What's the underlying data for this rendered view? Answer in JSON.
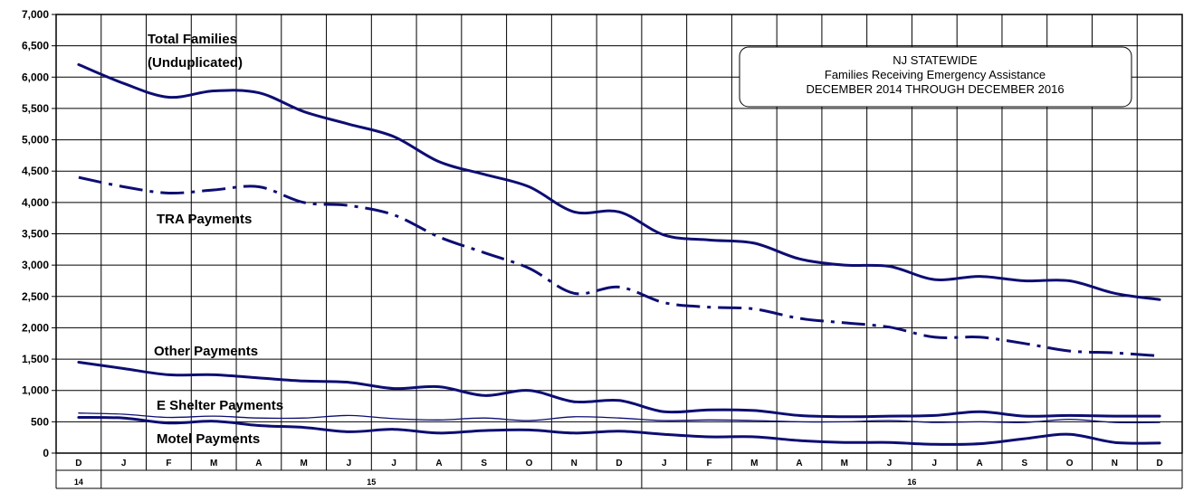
{
  "chart_data": {
    "type": "line",
    "title_lines": [
      "NJ STATEWIDE",
      "Families Receiving Emergency Assistance",
      "DECEMBER 2014 THROUGH DECEMBER 2016"
    ],
    "categories": [
      "D",
      "J",
      "F",
      "M",
      "A",
      "M",
      "J",
      "J",
      "A",
      "S",
      "O",
      "N",
      "D",
      "J",
      "F",
      "M",
      "A",
      "M",
      "J",
      "J",
      "A",
      "S",
      "O",
      "N",
      "D"
    ],
    "years": [
      {
        "label": "14",
        "start": 0,
        "end": 0
      },
      {
        "label": "15",
        "start": 1,
        "end": 12
      },
      {
        "label": "16",
        "start": 13,
        "end": 24
      }
    ],
    "ylim": [
      0,
      7000
    ],
    "ytick_step": 500,
    "ytick_labels": [
      "0",
      "500",
      "1,000",
      "1,500",
      "2,000",
      "2,500",
      "3,000",
      "3,500",
      "4,000",
      "4,500",
      "5,000",
      "5,500",
      "6,000",
      "6,500",
      "7,000"
    ],
    "grid": true,
    "line_color": "#0d0d73",
    "series": [
      {
        "name": "Total Families (Unduplicated)",
        "label_lines": [
          "Total Families",
          "(Unduplicated)"
        ],
        "style": "solid",
        "width": 3,
        "values": [
          6200,
          5900,
          5680,
          5780,
          5750,
          5450,
          5250,
          5050,
          4650,
          4450,
          4250,
          3850,
          3850,
          3480,
          3400,
          3350,
          3100,
          3000,
          2980,
          2770,
          2820,
          2750,
          2750,
          2550,
          2450
        ]
      },
      {
        "name": "TRA Payments",
        "label_lines": [
          "TRA Payments"
        ],
        "style": "dashdot",
        "width": 3,
        "values": [
          4400,
          4250,
          4150,
          4200,
          4250,
          4000,
          3950,
          3800,
          3450,
          3200,
          2950,
          2550,
          2650,
          2400,
          2330,
          2300,
          2150,
          2080,
          2010,
          1850,
          1850,
          1750,
          1630,
          1600,
          1550
        ]
      },
      {
        "name": "Other Payments",
        "label_lines": [
          "Other Payments"
        ],
        "style": "solid",
        "width": 3,
        "values": [
          1450,
          1350,
          1250,
          1250,
          1200,
          1150,
          1130,
          1030,
          1060,
          920,
          1000,
          820,
          840,
          660,
          690,
          680,
          600,
          580,
          590,
          600,
          660,
          590,
          600,
          590,
          590
        ]
      },
      {
        "name": "E Shelter Payments",
        "label_lines": [
          "E Shelter Payments"
        ],
        "style": "solid",
        "width": 1.3,
        "values": [
          640,
          620,
          570,
          590,
          560,
          560,
          600,
          550,
          530,
          560,
          520,
          580,
          560,
          520,
          530,
          520,
          500,
          500,
          520,
          490,
          500,
          490,
          540,
          490,
          490
        ]
      },
      {
        "name": "Motel Payments",
        "label_lines": [
          "Motel Payments"
        ],
        "style": "solid",
        "width": 3,
        "values": [
          570,
          560,
          480,
          510,
          440,
          410,
          340,
          380,
          320,
          360,
          370,
          320,
          350,
          300,
          260,
          260,
          200,
          170,
          170,
          140,
          150,
          230,
          300,
          170,
          160
        ]
      }
    ]
  }
}
